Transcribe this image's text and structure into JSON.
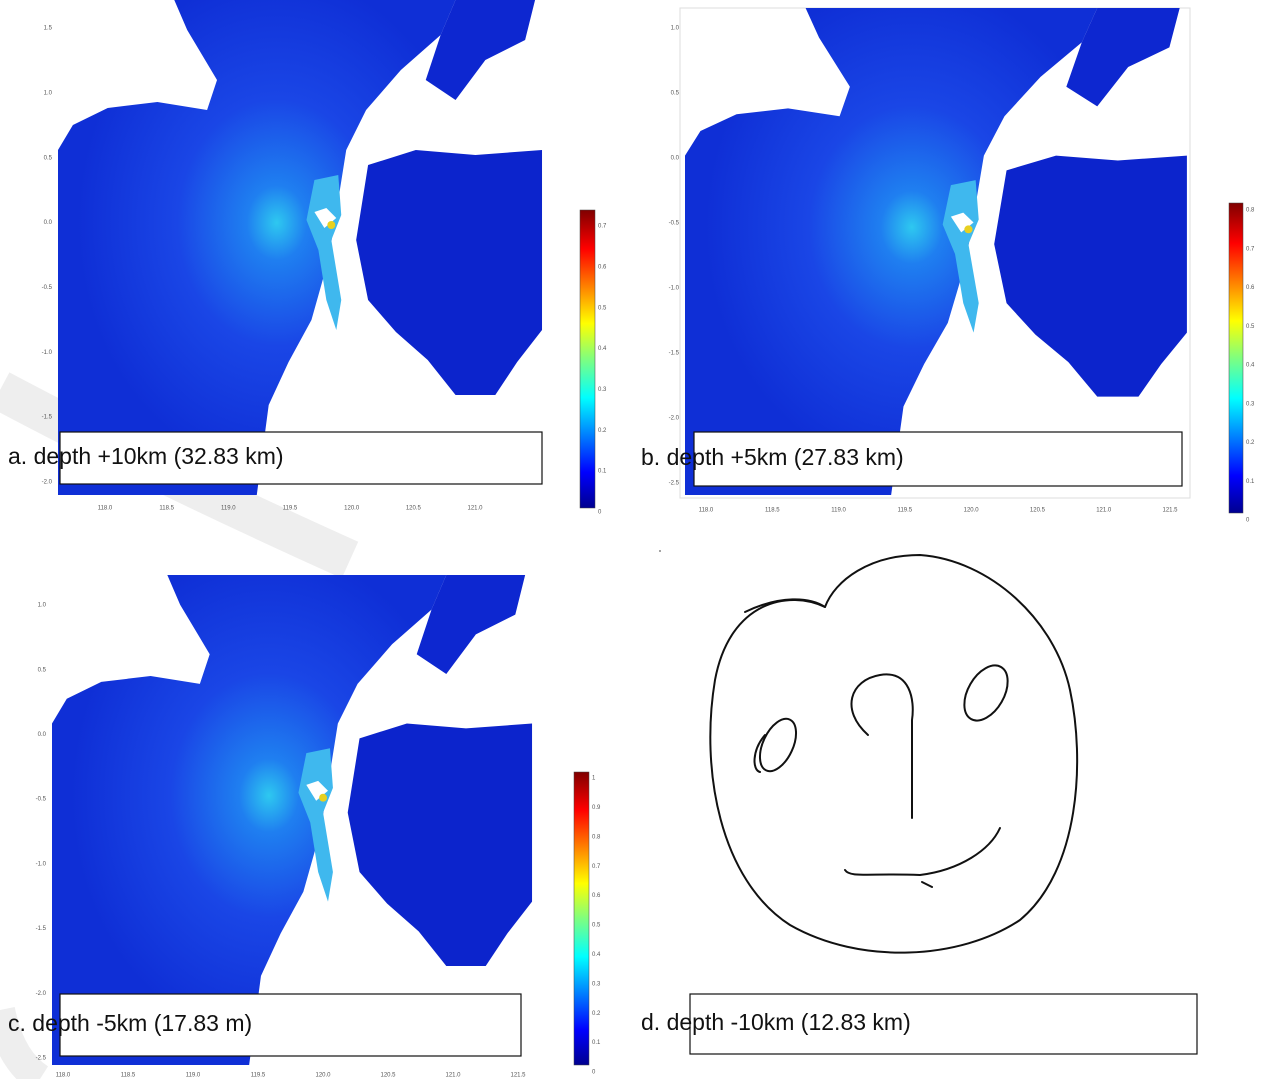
{
  "panels": [
    {
      "caption": "a. depth +10km (32.83 km)",
      "y_ticks": [
        "1.5",
        "1.0",
        "0.5",
        "0.0",
        "-0.5",
        "-1.0",
        "-1.5",
        "-2.0"
      ],
      "x_ticks": [
        "118.0",
        "118.5",
        "119.0",
        "119.5",
        "120.0",
        "120.5",
        "121.0"
      ],
      "colorbar_ticks": [
        "0",
        "0.1",
        "0.2",
        "0.3",
        "0.4",
        "0.5",
        "0.6",
        "0.7"
      ]
    },
    {
      "caption": "b. depth +5km (27.83 km)",
      "y_ticks": [
        "1.0",
        "0.5",
        "0.0",
        "-0.5",
        "-1.0",
        "-1.5",
        "-2.0",
        "-2.5"
      ],
      "x_ticks": [
        "118.0",
        "118.5",
        "119.0",
        "119.5",
        "120.0",
        "120.5",
        "121.0",
        "121.5"
      ],
      "colorbar_ticks": [
        "0",
        "0.1",
        "0.2",
        "0.3",
        "0.4",
        "0.5",
        "0.6",
        "0.7",
        "0.8"
      ]
    },
    {
      "caption": "c. depth -5km (17.83 m)",
      "y_ticks": [
        "1.0",
        "0.5",
        "0.0",
        "-0.5",
        "-1.0",
        "-1.5",
        "-2.0",
        "-2.5"
      ],
      "x_ticks": [
        "118.0",
        "118.5",
        "119.0",
        "119.5",
        "120.0",
        "120.5",
        "121.0",
        "121.5"
      ],
      "colorbar_ticks": [
        "0",
        "0.1",
        "0.2",
        "0.3",
        "0.4",
        "0.5",
        "0.6",
        "0.7",
        "0.8",
        "0.9",
        "1"
      ]
    },
    {
      "caption": "d. depth -10km (12.83 km)"
    }
  ]
}
